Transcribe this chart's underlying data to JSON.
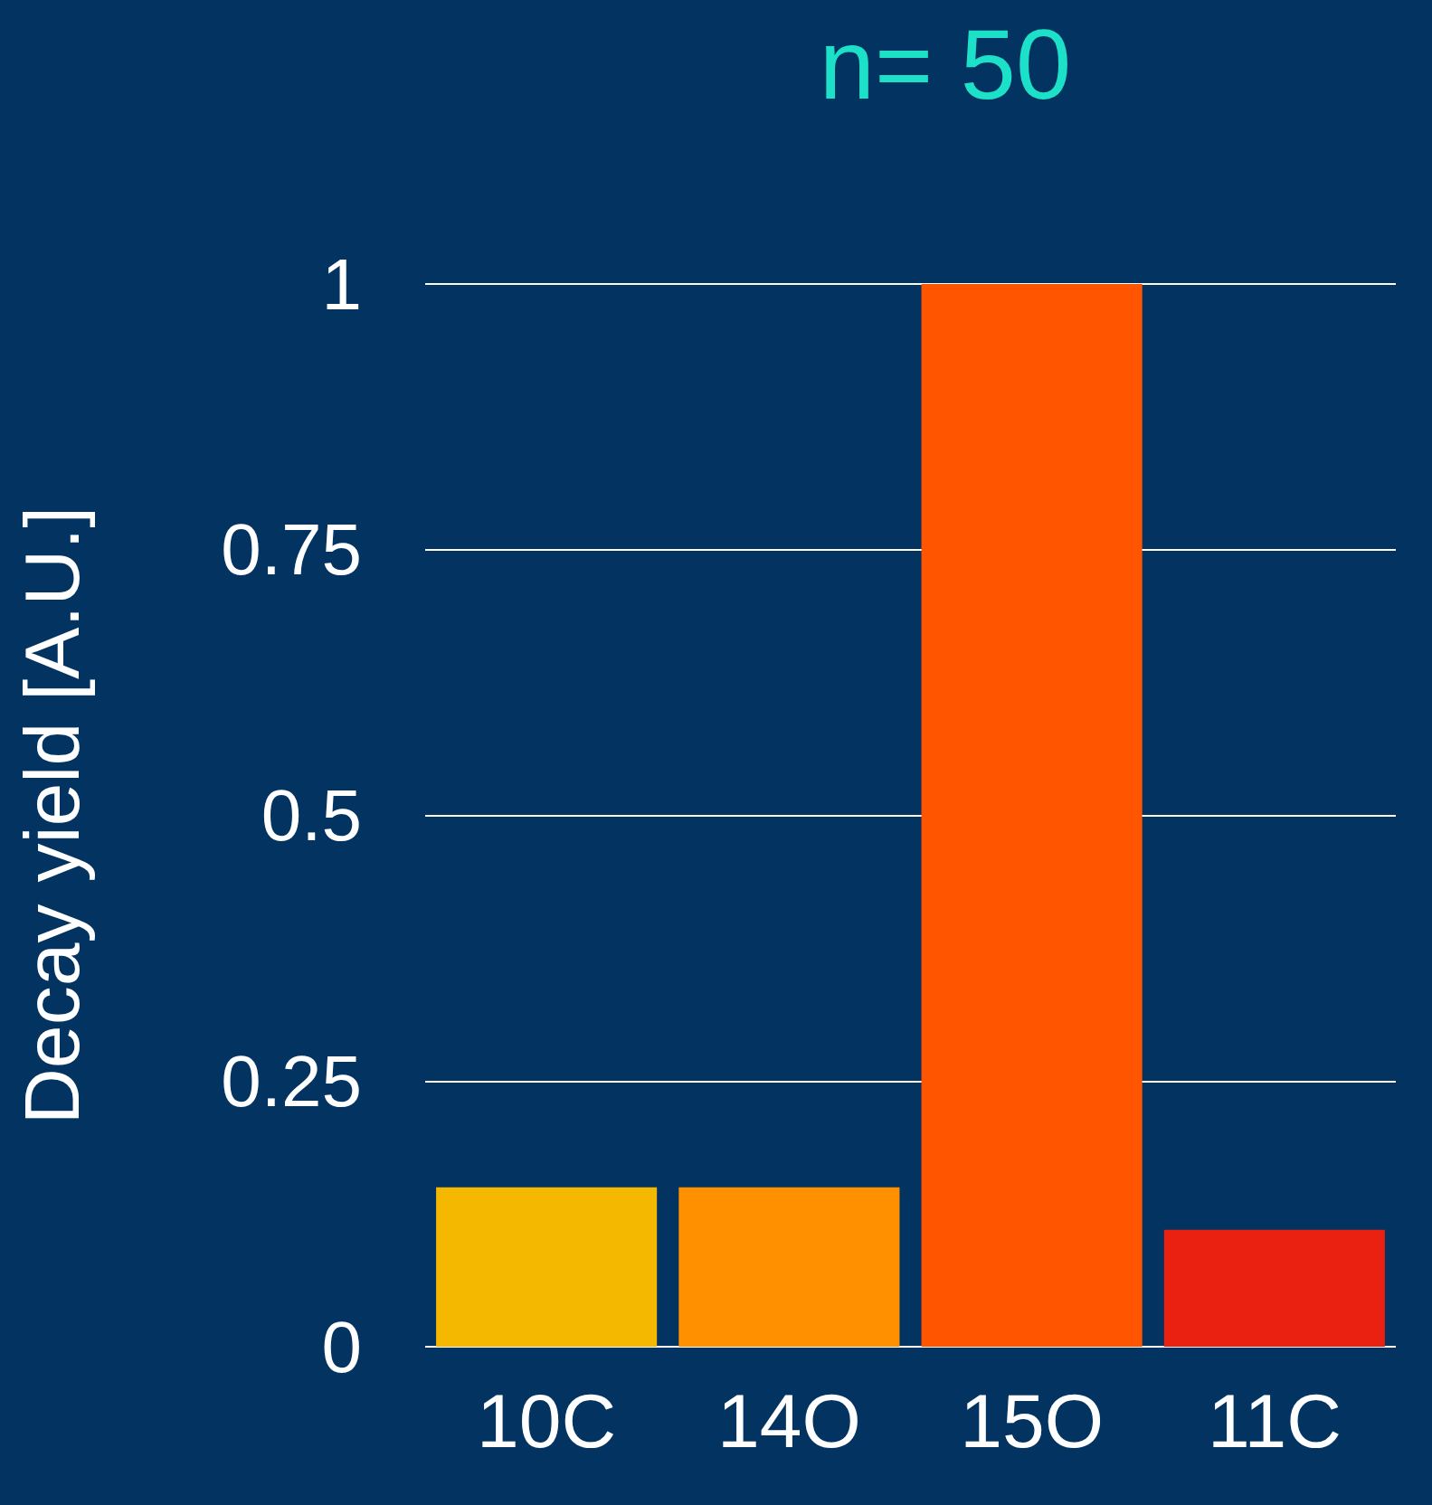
{
  "chart_data": {
    "type": "bar",
    "title": "n= 50",
    "ylabel": "Decay yield [A.U.]",
    "categories": [
      "10C",
      "14O",
      "15O",
      "11C"
    ],
    "values": [
      0.15,
      0.15,
      1,
      0.11
    ],
    "colors": [
      "#f5b800",
      "#ff9000",
      "#ff5500",
      "#ea2010"
    ],
    "ylim": [
      0,
      1
    ],
    "yticks": [
      0,
      0.25,
      0.5,
      0.75,
      1
    ],
    "grid": "y"
  }
}
